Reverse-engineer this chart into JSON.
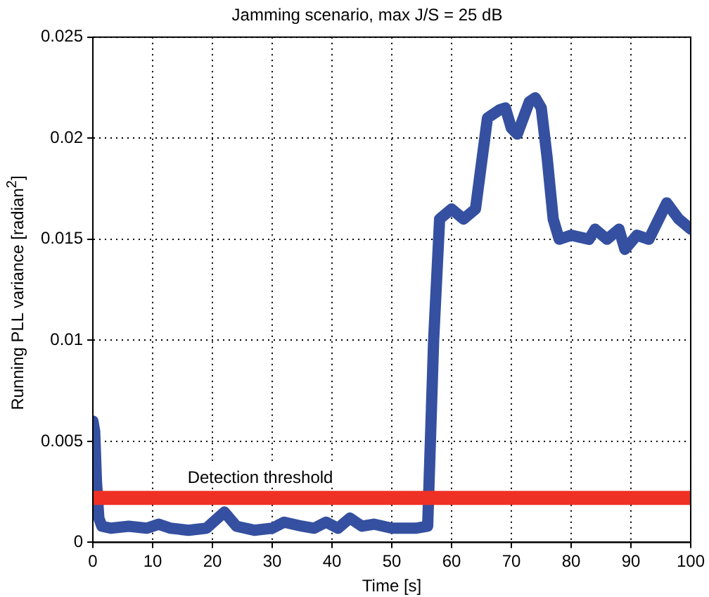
{
  "chart_data": {
    "type": "line",
    "title": "Jamming scenario, max J/S = 25 dB",
    "xlabel": "Time [s]",
    "ylabel": "Running PLL variance [radian$^{2}$]",
    "xlim": [
      0,
      100
    ],
    "xticks": [
      0,
      10,
      20,
      30,
      40,
      50,
      60,
      70,
      80,
      90,
      100
    ],
    "ylim": [
      0,
      0.025
    ],
    "yticks": [
      0,
      0.005,
      0.01,
      0.015,
      0.02,
      0.025
    ],
    "grid": true,
    "legend": false,
    "marker": "none",
    "line_style": "solid",
    "ref_lines": [
      {
        "axis": "y",
        "value": 0.0022,
        "label": "Detection threshold",
        "color": "#ee3124"
      }
    ],
    "series": [
      {
        "color": "#3550a0",
        "x": [
          0,
          0.3,
          0.6,
          1,
          1.5,
          3,
          6,
          9,
          11,
          13,
          16,
          19,
          22,
          24,
          27,
          30,
          32,
          35,
          37,
          39,
          41,
          43,
          45,
          47,
          50,
          54,
          56,
          57,
          58,
          60,
          62,
          64,
          66,
          68,
          69,
          70,
          71,
          72,
          73,
          74,
          75,
          76,
          77,
          78,
          80,
          83,
          84,
          86,
          88,
          89,
          91,
          93,
          95,
          96,
          98,
          100
        ],
        "values": [
          0.006,
          0.0055,
          0.003,
          0.0012,
          0.0008,
          0.0007,
          0.0008,
          0.0007,
          0.0009,
          0.0007,
          0.0006,
          0.0007,
          0.0015,
          0.0008,
          0.0006,
          0.0007,
          0.001,
          0.0008,
          0.0007,
          0.001,
          0.0007,
          0.0012,
          0.0008,
          0.0009,
          0.0007,
          0.0007,
          0.0008,
          0.01,
          0.016,
          0.0165,
          0.016,
          0.0165,
          0.021,
          0.0214,
          0.0215,
          0.0205,
          0.0202,
          0.021,
          0.0218,
          0.022,
          0.0215,
          0.019,
          0.016,
          0.015,
          0.0152,
          0.015,
          0.0155,
          0.015,
          0.0155,
          0.0145,
          0.0152,
          0.015,
          0.0162,
          0.0168,
          0.016,
          0.0155
        ]
      }
    ]
  }
}
